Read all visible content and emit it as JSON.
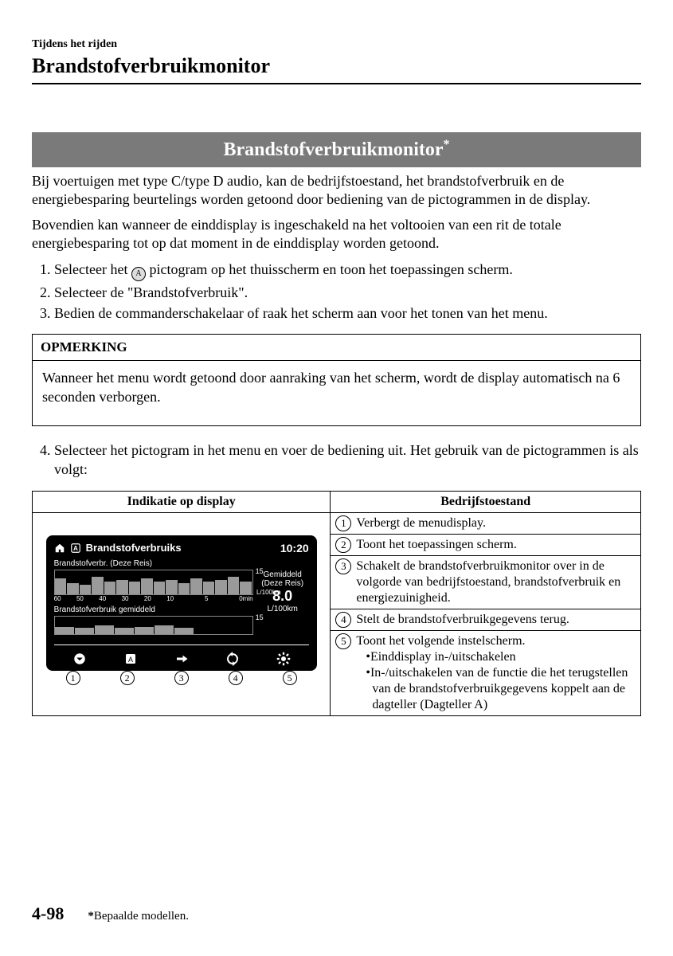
{
  "header": {
    "running_head": "Tijdens het rijden",
    "chapter_title": "Brandstofverbruikmonitor"
  },
  "heading_bar": {
    "text": "Brandstofverbruikmonitor",
    "star": "*"
  },
  "intro": {
    "p1": "Bij voertuigen met type C/type D audio, kan de bedrijfstoestand, het brandstofverbruik en de energiebesparing beurtelings worden getoond door bediening van de pictogrammen in de display.",
    "p2": "Bovendien kan wanneer de einddisplay is ingeschakeld na het voltooien van een rit de totale energiebesparing tot op dat moment in de einddisplay worden getoond."
  },
  "steps": {
    "s1a": "Selecteer het ",
    "s1b": " pictogram op het thuisscherm en toon het toepassingen scherm.",
    "inline_icon_label": "A",
    "s2": "Selecteer de \"Brandstofverbruik\".",
    "s3": "Bedien de commanderschakelaar of raak het scherm aan voor het tonen van het menu."
  },
  "note": {
    "head": "OPMERKING",
    "body": "Wanneer het menu wordt getoond door aanraking van het scherm, wordt de display automatisch na 6 seconden verborgen."
  },
  "step4": "Selecteer het pictogram in het menu en voer de bediening uit. Het gebruik van de pictogrammen is als volgt:",
  "table": {
    "col_left_head": "Indikatie op display",
    "col_right_head": "Bedrijfstoestand"
  },
  "display": {
    "title": "Brandstofverbruiks",
    "clock": "10:20",
    "chart1": {
      "label": "Brandstofverbr. (Deze Reis)",
      "y_label": "15",
      "x_labels": [
        "60",
        "50",
        "40",
        "30",
        "20",
        "10",
        "",
        "5",
        "",
        "0min"
      ],
      "x_unit": "L/100km",
      "bars": [
        10,
        7,
        6,
        11,
        8,
        9,
        8,
        10,
        8,
        9,
        7,
        10,
        8,
        9,
        11,
        8
      ],
      "bar_color": "#9a9a9a",
      "bg_color": "#000000",
      "grid_color": "#888888"
    },
    "chart2": {
      "label": "Brandstofverbruik gemiddeld",
      "y_label": "15",
      "bars": [
        6,
        5,
        7,
        5,
        6,
        7,
        5
      ],
      "bar_color": "#9a9a9a"
    },
    "side": {
      "line1": "Gemiddeld",
      "line2": "(Deze Reis)",
      "value": "8.0",
      "unit": "L/100km"
    },
    "callouts": [
      "1",
      "2",
      "3",
      "4",
      "5"
    ]
  },
  "status_rows": [
    {
      "num": "1",
      "text": "Verbergt de menudisplay."
    },
    {
      "num": "2",
      "text": "Toont het toepassingen scherm."
    },
    {
      "num": "3",
      "text": "Schakelt de brandstofverbruikmonitor over in de volgorde van bedrijfstoestand, brandstofverbruik en energiezuinigheid."
    },
    {
      "num": "4",
      "text": "Stelt de brandstofverbruikgegevens terug."
    },
    {
      "num": "5",
      "text": "Toont het volgende instelscherm.",
      "bullets": [
        "•Einddisplay in-/uitschakelen",
        "•In-/uitschakelen van de functie die het terugstellen van de brandstofverbruikgegevens koppelt aan de dagteller (Dagteller A)"
      ]
    }
  ],
  "footer": {
    "page_num": "4-98",
    "note_star": "*",
    "note_text": "Bepaalde modellen."
  }
}
